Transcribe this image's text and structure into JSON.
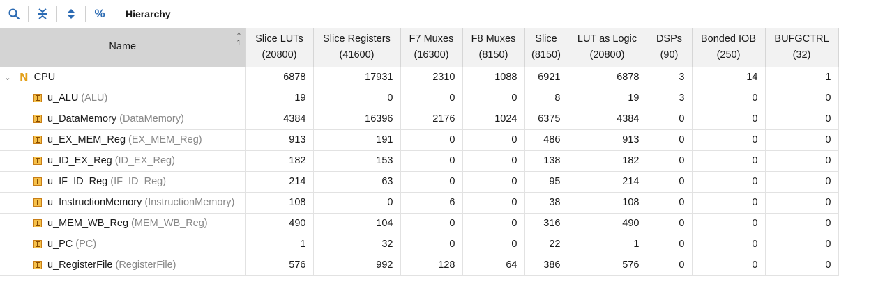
{
  "toolbar": {
    "title": "Hierarchy",
    "icons": [
      "search-icon",
      "collapse-all-icon",
      "expand-all-icon",
      "percent-icon"
    ],
    "percent_label": "%"
  },
  "table": {
    "sort_index": "1",
    "columns": [
      {
        "line1": "Name",
        "line2": ""
      },
      {
        "line1": "Slice LUTs",
        "line2": "(20800)"
      },
      {
        "line1": "Slice Registers",
        "line2": "(41600)"
      },
      {
        "line1": "F7 Muxes",
        "line2": "(16300)"
      },
      {
        "line1": "F8 Muxes",
        "line2": "(8150)"
      },
      {
        "line1": "Slice",
        "line2": "(8150)"
      },
      {
        "line1": "LUT as Logic",
        "line2": "(20800)"
      },
      {
        "line1": "DSPs",
        "line2": "(90)"
      },
      {
        "line1": "Bonded IOB",
        "line2": "(250)"
      },
      {
        "line1": "BUFGCTRL",
        "line2": "(32)"
      }
    ],
    "top": {
      "name": "CPU",
      "icon_letter": "N",
      "values": [
        "6878",
        "17931",
        "2310",
        "1088",
        "6921",
        "6878",
        "3",
        "14",
        "1"
      ]
    },
    "rows": [
      {
        "name": "u_ALU",
        "module": "(ALU)",
        "values": [
          "19",
          "0",
          "0",
          "0",
          "8",
          "19",
          "3",
          "0",
          "0"
        ]
      },
      {
        "name": "u_DataMemory",
        "module": "(DataMemory)",
        "values": [
          "4384",
          "16396",
          "2176",
          "1024",
          "6375",
          "4384",
          "0",
          "0",
          "0"
        ]
      },
      {
        "name": "u_EX_MEM_Reg",
        "module": "(EX_MEM_Reg)",
        "values": [
          "913",
          "191",
          "0",
          "0",
          "486",
          "913",
          "0",
          "0",
          "0"
        ]
      },
      {
        "name": "u_ID_EX_Reg",
        "module": "(ID_EX_Reg)",
        "values": [
          "182",
          "153",
          "0",
          "0",
          "138",
          "182",
          "0",
          "0",
          "0"
        ]
      },
      {
        "name": "u_IF_ID_Reg",
        "module": "(IF_ID_Reg)",
        "values": [
          "214",
          "63",
          "0",
          "0",
          "95",
          "214",
          "0",
          "0",
          "0"
        ]
      },
      {
        "name": "u_InstructionMemory",
        "module": "(InstructionMemory)",
        "values": [
          "108",
          "0",
          "6",
          "0",
          "38",
          "108",
          "0",
          "0",
          "0"
        ]
      },
      {
        "name": "u_MEM_WB_Reg",
        "module": "(MEM_WB_Reg)",
        "values": [
          "490",
          "104",
          "0",
          "0",
          "316",
          "490",
          "0",
          "0",
          "0"
        ]
      },
      {
        "name": "u_PC",
        "module": "(PC)",
        "values": [
          "1",
          "32",
          "0",
          "0",
          "22",
          "1",
          "0",
          "0",
          "0"
        ]
      },
      {
        "name": "u_RegisterFile",
        "module": "(RegisterFile)",
        "values": [
          "576",
          "992",
          "128",
          "64",
          "386",
          "576",
          "0",
          "0",
          "0"
        ]
      }
    ]
  }
}
